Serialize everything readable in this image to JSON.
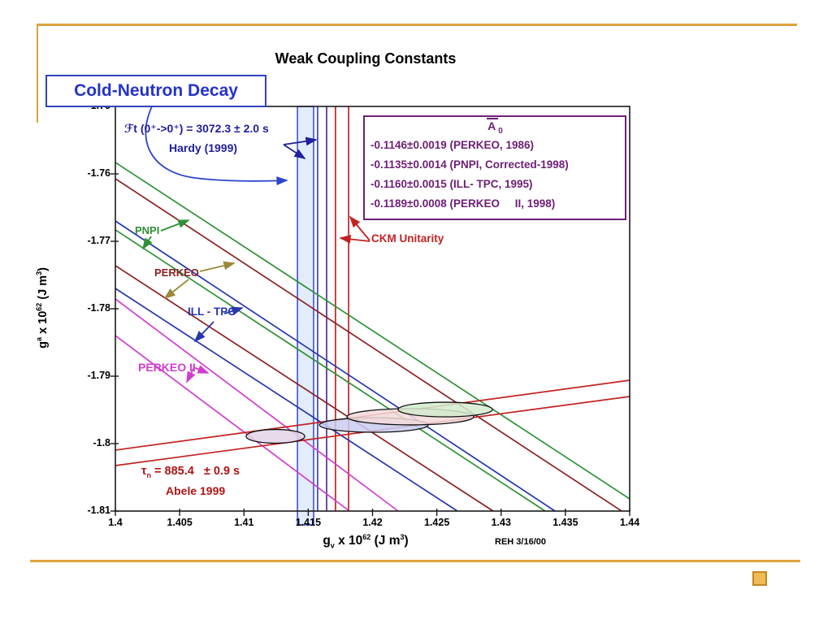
{
  "title": "Weak Coupling Constants",
  "annotations": {
    "cold_label": "Cold-Neutron Decay",
    "ft_line1": "ℱt (0⁺->0⁺) = 3072.3 ± 2.0 s",
    "ft_line2": "Hardy (1999)",
    "ckm": "CKM Unitarity",
    "pnpi": "PNPI",
    "perkeo": "PERKEO",
    "ill_tpc": "ILL - TPC",
    "perkeo2": "PERKEO II",
    "tau_base": "τ",
    "tau_sub": "n",
    "tau_rest": " = 885.4   ± 0.9 s",
    "abele": "Abele 1999",
    "credit": "REH 3/16/00"
  },
  "legend": {
    "title_base": "A",
    "title_sub": "0",
    "entries": [
      "-0.1146±0.0019 (PERKEO, 1986)",
      "-0.1135±0.0014 (PNPI, Corrected-1998)",
      "-0.1160±0.0015 (ILL- TPC, 1995)",
      "-0.1189±0.0008 (PERKEO     II, 1998)"
    ]
  },
  "x_title": {
    "base": "g",
    "sub": "v",
    "mid": " x 10",
    "sup": "62",
    "tail": " (J m",
    "sup2": "3",
    "close": ")"
  },
  "y_title": {
    "base": "g",
    "sup_a": "a",
    "mid": " x 10",
    "sup": "62",
    "tail": " (J m",
    "sup2": "3",
    "close": ")"
  },
  "colors": {
    "gold": "#dda33c",
    "frame": "#1a1a1a",
    "navy": "#20209d",
    "legend_purple": "#6e2076",
    "green": "#2f9135",
    "maroon": "#8b1f20",
    "ill_blue": "#2737ae",
    "magenta": "#cf3ecf",
    "red": "#c32222",
    "purple_vline": "#50309b",
    "band_edge": "#3346cc",
    "band_fill": "#cfe0f7",
    "khaki_arrow": "#9a8a3a",
    "curve_blue": "#2b44cc"
  },
  "chart_data": {
    "type": "line",
    "title": "Weak Coupling Constants",
    "xlabel": "gv x 10^62 (J m^3)",
    "ylabel": "ga x 10^62 (J m^3)",
    "xlim": [
      1.4,
      1.44
    ],
    "ylim": [
      -1.81,
      -1.75
    ],
    "x_ticks": [
      1.4,
      1.405,
      1.41,
      1.415,
      1.42,
      1.425,
      1.43,
      1.435,
      1.44
    ],
    "x_tick_labels": [
      "1.4",
      "1.405",
      "1.41",
      "1.415",
      "1.42",
      "1.425",
      "1.43",
      "1.435",
      "1.44"
    ],
    "y_ticks": [
      -1.75,
      -1.76,
      -1.77,
      -1.78,
      -1.79,
      -1.8,
      -1.81
    ],
    "y_tick_labels": [
      "-1.75",
      "-1.76",
      "-1.77",
      "-1.78",
      "-1.79",
      "-1.8",
      "-1.81"
    ],
    "diagonal_bands": [
      {
        "name": "PNPI",
        "color": "#2f9135",
        "lines": [
          [
            [
              1.4,
              -1.75831
            ],
            [
              1.44,
              -1.80819
            ]
          ],
          [
            [
              1.4,
              -1.76831
            ],
            [
              1.43343,
              -1.81
            ]
          ]
        ]
      },
      {
        "name": "PERKEO",
        "color": "#8b1f20",
        "lines": [
          [
            [
              1.4,
              -1.76072
            ],
            [
              1.43937,
              -1.81
            ]
          ],
          [
            [
              1.4,
              -1.77361
            ],
            [
              1.42938,
              -1.81
            ]
          ]
        ]
      },
      {
        "name": "ILL - TPC",
        "color": "#2737ae",
        "lines": [
          [
            [
              1.4,
              -1.76699
            ],
            [
              1.43419,
              -1.81
            ]
          ],
          [
            [
              1.4,
              -1.77699
            ],
            [
              1.4266,
              -1.81
            ]
          ]
        ]
      },
      {
        "name": "PERKEO II",
        "color": "#cf3ecf",
        "lines": [
          [
            [
              1.4,
              -1.77855
            ],
            [
              1.42199,
              -1.81
            ]
          ],
          [
            [
              1.4,
              -1.78398
            ],
            [
              1.4182,
              -1.81
            ]
          ]
        ]
      },
      {
        "name": "neutron-lifetime Abele 1999",
        "color": "#c32222",
        "lines": [
          [
            [
              1.4,
              -1.80096
            ],
            [
              1.44,
              -1.7906
            ]
          ],
          [
            [
              1.4,
              -1.80325
            ],
            [
              1.44,
              -1.79301
            ]
          ]
        ]
      }
    ],
    "vertical_band": {
      "name": "Ft superallowed band",
      "x0": 1.41416,
      "x1": 1.41542,
      "fill": "#cfe0f7",
      "edge": "#3346cc"
    },
    "vertical_lines": [
      {
        "name": "Ft edge line",
        "x": 1.41573,
        "color": "#3346cc"
      },
      {
        "name": "Ft inner line",
        "x": 1.41643,
        "color": "#50309b"
      },
      {
        "name": "CKM unitarity line 1",
        "x": 1.41712,
        "color": "#c32222"
      },
      {
        "name": "CKM unitarity line 2",
        "x": 1.41814,
        "color": "#c32222"
      }
    ],
    "ellipses": [
      {
        "name": "fit-ellipse-perkeo2",
        "cx": 1.41245,
        "cy": -1.79892,
        "rx": 0.00228,
        "ry": 0.00102,
        "fill": "#e3d3e8"
      },
      {
        "name": "fit-ellipse-ill",
        "cx": 1.4201,
        "cy": -1.79723,
        "rx": 0.00423,
        "ry": 0.00108,
        "fill": "#c9cdf0"
      },
      {
        "name": "fit-ellipse-perkeo",
        "cx": 1.42294,
        "cy": -1.79602,
        "rx": 0.00493,
        "ry": 0.0012,
        "fill": "#f3d9d9"
      },
      {
        "name": "fit-ellipse-pnpi",
        "cx": 1.42566,
        "cy": -1.79494,
        "rx": 0.00367,
        "ry": 0.00108,
        "fill": "#d4ebcf"
      }
    ],
    "legend_position": "upper right",
    "grid": false
  }
}
